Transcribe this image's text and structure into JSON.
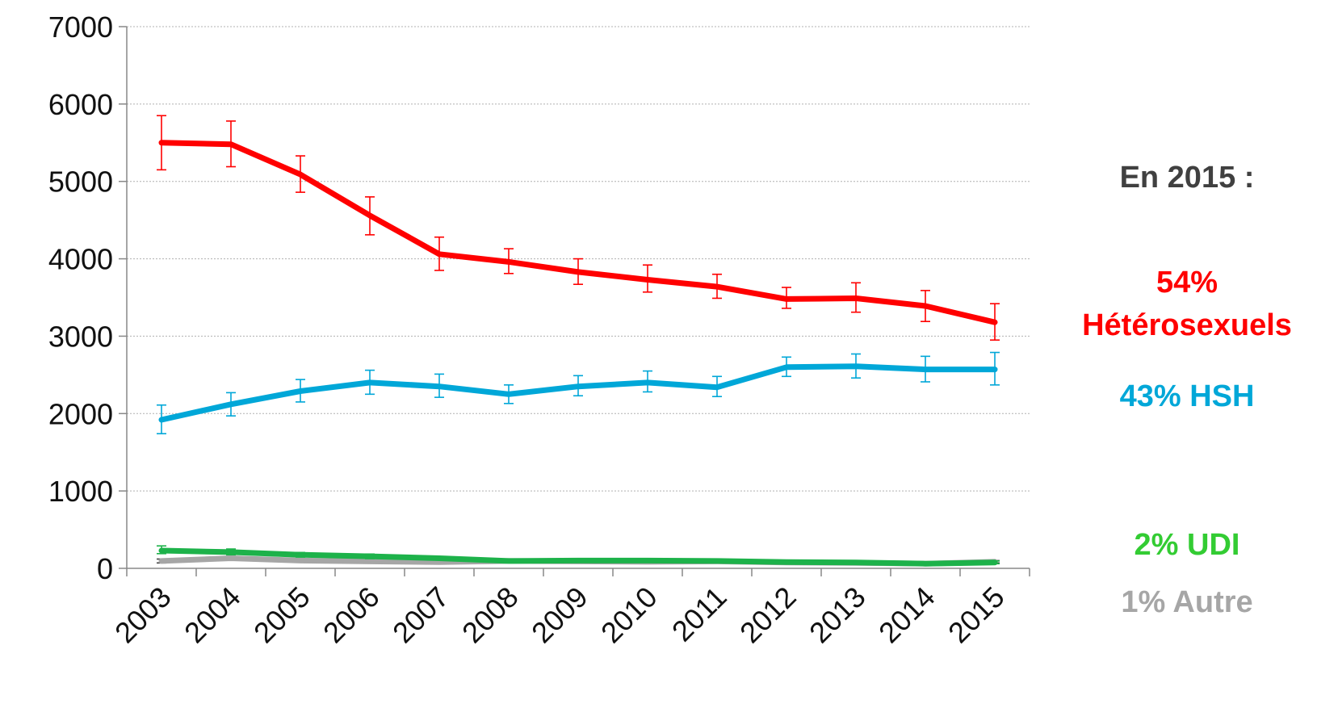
{
  "chart_data": {
    "type": "line",
    "x": [
      "2003",
      "2004",
      "2005",
      "2006",
      "2007",
      "2008",
      "2009",
      "2010",
      "2011",
      "2012",
      "2013",
      "2014",
      "2015"
    ],
    "ylim": [
      0,
      7000
    ],
    "yticks": [
      0,
      1000,
      2000,
      3000,
      4000,
      5000,
      6000,
      7000
    ],
    "grid": "horizontal dotted",
    "error_bars": true,
    "series": [
      {
        "color": "#ff0000",
        "values": [
          5500,
          5480,
          5090,
          4560,
          4060,
          3960,
          3830,
          3730,
          3640,
          3480,
          3490,
          3390,
          3180
        ],
        "err_low": [
          5150,
          5190,
          4860,
          4310,
          3850,
          3810,
          3670,
          3570,
          3490,
          3360,
          3310,
          3190,
          2950
        ],
        "err_high": [
          5850,
          5780,
          5330,
          4800,
          4280,
          4130,
          4000,
          3920,
          3800,
          3630,
          3690,
          3590,
          3420
        ]
      },
      {
        "color": "#00a7d8",
        "values": [
          1920,
          2120,
          2290,
          2400,
          2350,
          2250,
          2350,
          2400,
          2340,
          2600,
          2610,
          2570,
          2570
        ],
        "err_low": [
          1740,
          1970,
          2150,
          2250,
          2210,
          2130,
          2230,
          2280,
          2220,
          2480,
          2460,
          2410,
          2370
        ],
        "err_high": [
          2110,
          2270,
          2440,
          2560,
          2510,
          2370,
          2490,
          2550,
          2480,
          2730,
          2770,
          2740,
          2790
        ]
      },
      {
        "color": "#1db24a",
        "values": [
          230,
          210,
          175,
          155,
          130,
          95,
          100,
          100,
          95,
          80,
          75,
          60,
          75
        ],
        "err_low": [
          190,
          175,
          145,
          125,
          110,
          80,
          85,
          85,
          80,
          65,
          60,
          50,
          60
        ],
        "err_high": [
          290,
          250,
          205,
          185,
          150,
          110,
          120,
          115,
          110,
          95,
          90,
          75,
          95
        ]
      },
      {
        "color": "#a6a6a6",
        "values": [
          95,
          130,
          100,
          90,
          80,
          95,
          90,
          85,
          90,
          75,
          70,
          60,
          85
        ],
        "err_low": [
          70,
          105,
          80,
          70,
          65,
          80,
          75,
          70,
          75,
          60,
          55,
          45,
          70
        ],
        "err_high": [
          120,
          155,
          120,
          110,
          95,
          110,
          105,
          100,
          105,
          90,
          85,
          75,
          100
        ]
      }
    ],
    "annotations": {
      "heading": "En 2015 :",
      "hetero_pct": "54%",
      "hetero_label": "Hétérosexuels",
      "hsh": "43% HSH",
      "udi": "2% UDI",
      "autre": "1% Autre"
    },
    "colors": {
      "heading": "#404040",
      "hetero": "#ff0000",
      "hsh": "#00a7d8",
      "udi": "#33cc33",
      "autre": "#a6a6a6",
      "grid": "#b0b0b0",
      "axis": "#888888"
    }
  }
}
